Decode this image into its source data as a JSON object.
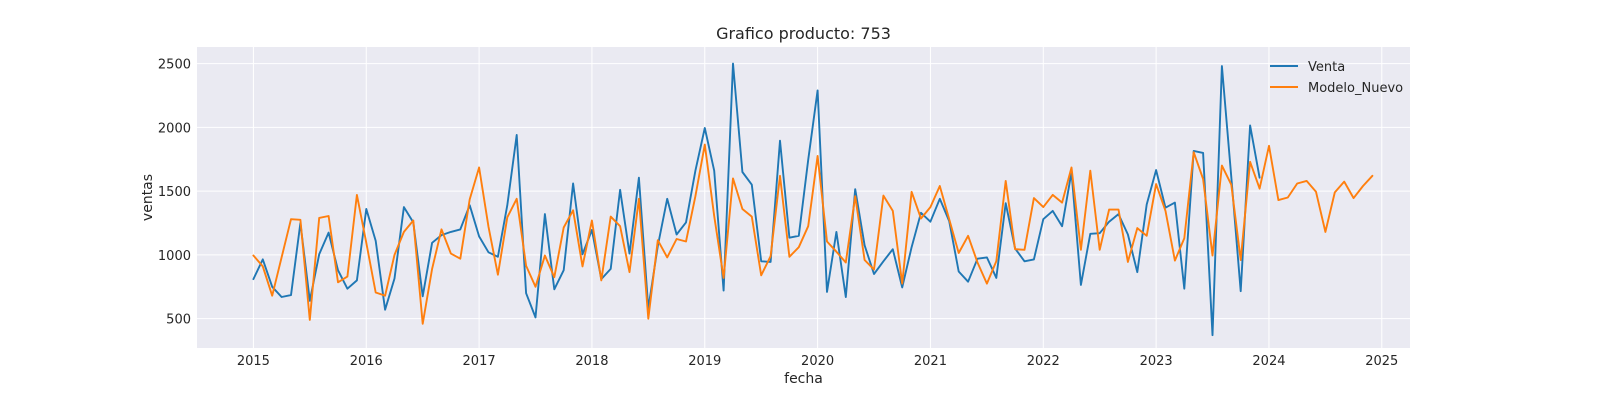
{
  "chart_data": {
    "type": "line",
    "title": "Grafico producto: 753",
    "xlabel": "fecha",
    "ylabel": "ventas",
    "x_ticks": [
      "2015",
      "2016",
      "2017",
      "2018",
      "2019",
      "2020",
      "2021",
      "2022",
      "2023",
      "2024",
      "2025"
    ],
    "y_ticks": [
      500,
      1000,
      1500,
      2000,
      2500
    ],
    "xlim": [
      "2014-07",
      "2025-04"
    ],
    "ylim": [
      270,
      2630
    ],
    "grid": true,
    "legend_position": "top-right",
    "colors": {
      "plot_background": "#eaeaf2",
      "grid": "#ffffff",
      "Venta": "#1f77b4",
      "Modelo_Nuevo": "#ff7f0e"
    },
    "series": [
      {
        "name": "Venta",
        "start": "2015-01",
        "values": [
          810,
          965,
          750,
          670,
          685,
          1250,
          640,
          1005,
          1175,
          880,
          735,
          800,
          1360,
          1110,
          570,
          815,
          1375,
          1255,
          675,
          1095,
          1155,
          1180,
          1200,
          1390,
          1145,
          1020,
          985,
          1390,
          1940,
          700,
          510,
          1320,
          730,
          880,
          1560,
          1005,
          1195,
          810,
          890,
          1510,
          1010,
          1605,
          580,
          1070,
          1440,
          1160,
          1255,
          1660,
          1995,
          1660,
          720,
          2500,
          1650,
          1550,
          950,
          945,
          1895,
          1135,
          1150,
          1745,
          2290,
          710,
          1180,
          670,
          1515,
          1075,
          850,
          950,
          1045,
          745,
          1060,
          1330,
          1260,
          1440,
          1265,
          870,
          790,
          970,
          980,
          820,
          1405,
          1050,
          950,
          965,
          1280,
          1345,
          1225,
          1650,
          765,
          1165,
          1170,
          1260,
          1320,
          1160,
          865,
          1395,
          1665,
          1370,
          1410,
          735,
          1815,
          1800,
          370,
          2480,
          1610,
          715,
          2015,
          1605
        ]
      },
      {
        "name": "Modelo_Nuevo",
        "start": "2015-01",
        "values": [
          995,
          910,
          680,
          980,
          1280,
          1275,
          490,
          1290,
          1305,
          785,
          830,
          1470,
          1095,
          705,
          680,
          1000,
          1180,
          1270,
          460,
          890,
          1200,
          1010,
          970,
          1435,
          1685,
          1220,
          845,
          1295,
          1440,
          915,
          750,
          995,
          825,
          1215,
          1350,
          910,
          1270,
          800,
          1300,
          1225,
          865,
          1440,
          500,
          1115,
          980,
          1125,
          1105,
          1460,
          1865,
          1305,
          820,
          1600,
          1360,
          1300,
          840,
          990,
          1620,
          985,
          1060,
          1225,
          1775,
          1105,
          1025,
          940,
          1460,
          960,
          885,
          1465,
          1345,
          775,
          1495,
          1285,
          1375,
          1540,
          1280,
          1015,
          1150,
          940,
          775,
          950,
          1580,
          1045,
          1040,
          1445,
          1375,
          1470,
          1410,
          1685,
          1040,
          1660,
          1040,
          1355,
          1355,
          945,
          1210,
          1150,
          1555,
          1345,
          955,
          1130,
          1805,
          1595,
          995,
          1700,
          1550,
          960,
          1730,
          1520,
          1855,
          1430,
          1450,
          1560,
          1580,
          1495,
          1180,
          1490,
          1575,
          1445,
          1540,
          1620
        ]
      }
    ]
  }
}
